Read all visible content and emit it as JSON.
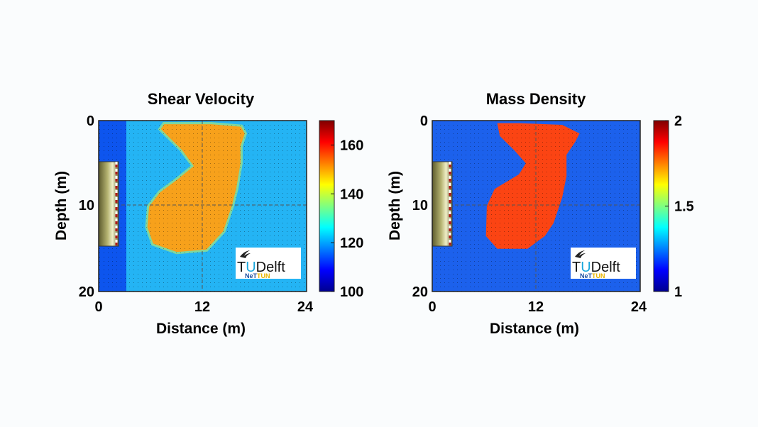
{
  "panels": [
    {
      "title": "Shear Velocity",
      "xlabel": "Distance (m)",
      "ylabel": "Depth (m)",
      "x_ticks": [
        "0",
        "12",
        "24"
      ],
      "y_ticks": [
        "0",
        "10",
        "20"
      ],
      "colorbar_ticks": [
        "100",
        "120",
        "140",
        "160"
      ],
      "colorbar_range": [
        100,
        170
      ]
    },
    {
      "title": "Mass Density",
      "xlabel": "Distance (m)",
      "ylabel": "Depth (m)",
      "x_ticks": [
        "0",
        "12",
        "24"
      ],
      "y_ticks": [
        "0",
        "10",
        "20"
      ],
      "colorbar_ticks": [
        "1",
        "1.5",
        "2"
      ],
      "colorbar_range": [
        1,
        2
      ]
    }
  ],
  "logo": {
    "brand_t": "T",
    "brand_u": "U",
    "brand_rest": "Delft",
    "sub_a": "NeT",
    "sub_b": "TUN"
  },
  "chart_data": [
    {
      "type": "heatmap",
      "title": "Shear Velocity",
      "xlabel": "Distance (m)",
      "ylabel": "Depth (m)",
      "xlim": [
        0,
        24
      ],
      "ylim": [
        0,
        20
      ],
      "y_reversed": true,
      "colormap": "jet",
      "clim": [
        100,
        170
      ],
      "colorbar_ticks": [
        100,
        120,
        140,
        160
      ],
      "background_value": 125,
      "left_strip": {
        "x_range": [
          0,
          3.2
        ],
        "value": 115
      },
      "anomaly": {
        "value": 152,
        "outline": [
          [
            7,
            1
          ],
          [
            7.5,
            0.3
          ],
          [
            13,
            0.3
          ],
          [
            16.5,
            0.6
          ],
          [
            17,
            1.5
          ],
          [
            16.5,
            3
          ],
          [
            16.5,
            5
          ],
          [
            16,
            8
          ],
          [
            15.5,
            10
          ],
          [
            14.5,
            13
          ],
          [
            12.5,
            15.2
          ],
          [
            9,
            15.5
          ],
          [
            6.2,
            14.5
          ],
          [
            5.5,
            12.5
          ],
          [
            5.7,
            10
          ],
          [
            7,
            8.3
          ],
          [
            9,
            6.8
          ],
          [
            10.8,
            5.3
          ],
          [
            9.5,
            3.5
          ],
          [
            7.8,
            1.8
          ]
        ]
      },
      "grid": true,
      "annotations": [
        "gray dashed crosshair at x=12, y=10"
      ]
    },
    {
      "type": "heatmap",
      "title": "Mass Density",
      "xlabel": "Distance (m)",
      "ylabel": "Depth (m)",
      "xlim": [
        0,
        24
      ],
      "ylim": [
        0,
        20
      ],
      "y_reversed": true,
      "colormap": "jet",
      "clim": [
        1,
        2
      ],
      "colorbar_ticks": [
        1,
        1.5,
        2
      ],
      "background_value": 1.2,
      "anomaly": {
        "value": 1.9,
        "outline": [
          [
            7.5,
            0.3
          ],
          [
            10,
            0.3
          ],
          [
            15,
            0.5
          ],
          [
            16,
            1
          ],
          [
            17,
            1.5
          ],
          [
            16.5,
            2.5
          ],
          [
            15.5,
            4
          ],
          [
            15.5,
            6.5
          ],
          [
            15,
            9
          ],
          [
            14,
            12
          ],
          [
            13,
            13.5
          ],
          [
            11,
            15
          ],
          [
            7.5,
            15
          ],
          [
            6.2,
            13.5
          ],
          [
            6.3,
            10
          ],
          [
            7.2,
            8
          ],
          [
            10,
            6.3
          ],
          [
            10.8,
            5
          ],
          [
            9.5,
            3.5
          ],
          [
            7.8,
            1.8
          ]
        ]
      },
      "grid": true,
      "annotations": [
        "gray dashed crosshair at x=12, y=10"
      ]
    }
  ]
}
